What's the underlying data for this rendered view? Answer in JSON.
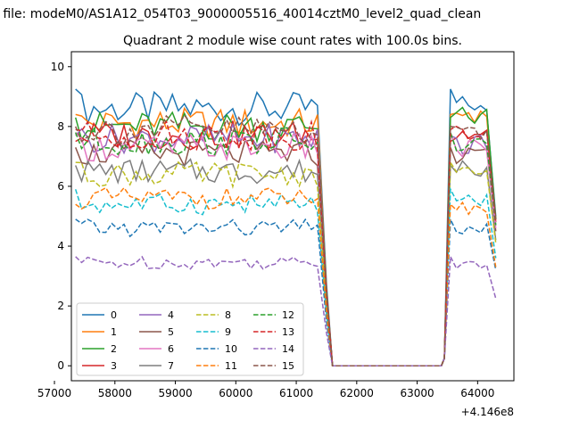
{
  "figure_title": "n file: modeM0/AS1A12_054T03_9000005516_40014cztM0_level2_quad_clean",
  "chart_data": {
    "type": "line",
    "title": "Quadrant 2 module wise count rates with 100.0s bins.",
    "xlabel": "",
    "ylabel": "",
    "x_offset_label": "+4.146e8",
    "xlim": [
      57280,
      64600
    ],
    "ylim": [
      -0.5,
      10.5
    ],
    "x_ticks": [
      57000,
      58000,
      59000,
      60000,
      61000,
      62000,
      63000,
      64000
    ],
    "x_tick_labels": [
      "57000",
      "58000",
      "59000",
      "60000",
      "61000",
      "62000",
      "63000",
      "64000"
    ],
    "y_ticks": [
      0,
      2,
      4,
      6,
      8,
      10
    ],
    "y_tick_labels": [
      "0",
      "2",
      "4",
      "6",
      "8",
      "10"
    ],
    "grid": false,
    "legend_position": "lower-left",
    "legend_columns": 4,
    "series": [
      {
        "name": "0",
        "level": 8.6,
        "first": 9.25,
        "peak": 9.2,
        "tail": 8.9,
        "end": 5.0,
        "color": "#1f77b4",
        "dash": "solid"
      },
      {
        "name": "1",
        "level": 8.1,
        "first": 8.4,
        "peak": 9.9,
        "tail": 8.4,
        "end": 4.9,
        "color": "#ff7f0e",
        "dash": "solid"
      },
      {
        "name": "2",
        "level": 8.0,
        "first": 8.3,
        "peak": 8.9,
        "tail": 8.3,
        "end": 4.9,
        "color": "#2ca02c",
        "dash": "solid"
      },
      {
        "name": "3",
        "level": 7.7,
        "first": 7.5,
        "peak": 8.7,
        "tail": 7.6,
        "end": 4.8,
        "color": "#d62728",
        "dash": "solid"
      },
      {
        "name": "4",
        "level": 7.6,
        "first": 7.7,
        "peak": 8.4,
        "tail": 7.4,
        "end": 4.7,
        "color": "#9467bd",
        "dash": "solid"
      },
      {
        "name": "5",
        "level": 7.1,
        "first": 7.3,
        "peak": 8.6,
        "tail": 7.0,
        "end": 4.5,
        "color": "#8c564b",
        "dash": "solid"
      },
      {
        "name": "6",
        "level": 7.3,
        "first": 7.8,
        "peak": 8.2,
        "tail": 7.3,
        "end": 4.6,
        "color": "#e377c2",
        "dash": "solid"
      },
      {
        "name": "7",
        "level": 6.5,
        "first": 6.7,
        "peak": 7.8,
        "tail": 6.6,
        "end": 4.2,
        "color": "#7f7f7f",
        "dash": "solid"
      },
      {
        "name": "8",
        "level": 6.4,
        "first": 6.8,
        "peak": 7.4,
        "tail": 6.5,
        "end": 4.1,
        "color": "#bcbd22",
        "dash": "dashed"
      },
      {
        "name": "9",
        "level": 5.4,
        "first": 5.9,
        "peak": 6.3,
        "tail": 5.5,
        "end": 3.6,
        "color": "#17becf",
        "dash": "dashed"
      },
      {
        "name": "10",
        "level": 4.6,
        "first": 4.9,
        "peak": 5.1,
        "tail": 4.6,
        "end": 3.2,
        "color": "#1f77b4",
        "dash": "dashed"
      },
      {
        "name": "11",
        "level": 5.6,
        "first": 5.4,
        "peak": 6.9,
        "tail": 5.3,
        "end": 3.3,
        "color": "#ff7f0e",
        "dash": "dashed"
      },
      {
        "name": "12",
        "level": 7.5,
        "first": 7.8,
        "peak": 8.3,
        "tail": 7.5,
        "end": 4.7,
        "color": "#2ca02c",
        "dash": "dashed"
      },
      {
        "name": "13",
        "level": 7.7,
        "first": 7.9,
        "peak": 8.5,
        "tail": 7.7,
        "end": 4.8,
        "color": "#d62728",
        "dash": "dashed"
      },
      {
        "name": "14",
        "level": 3.45,
        "first": 3.65,
        "peak": 4.1,
        "tail": 3.4,
        "end": 2.25,
        "color": "#9467bd",
        "dash": "dashed"
      },
      {
        "name": "15",
        "level": 7.9,
        "first": 8.0,
        "peak": 9.0,
        "tail": 7.9,
        "end": 4.9,
        "color": "#8c564b",
        "dash": "dashed"
      }
    ]
  }
}
